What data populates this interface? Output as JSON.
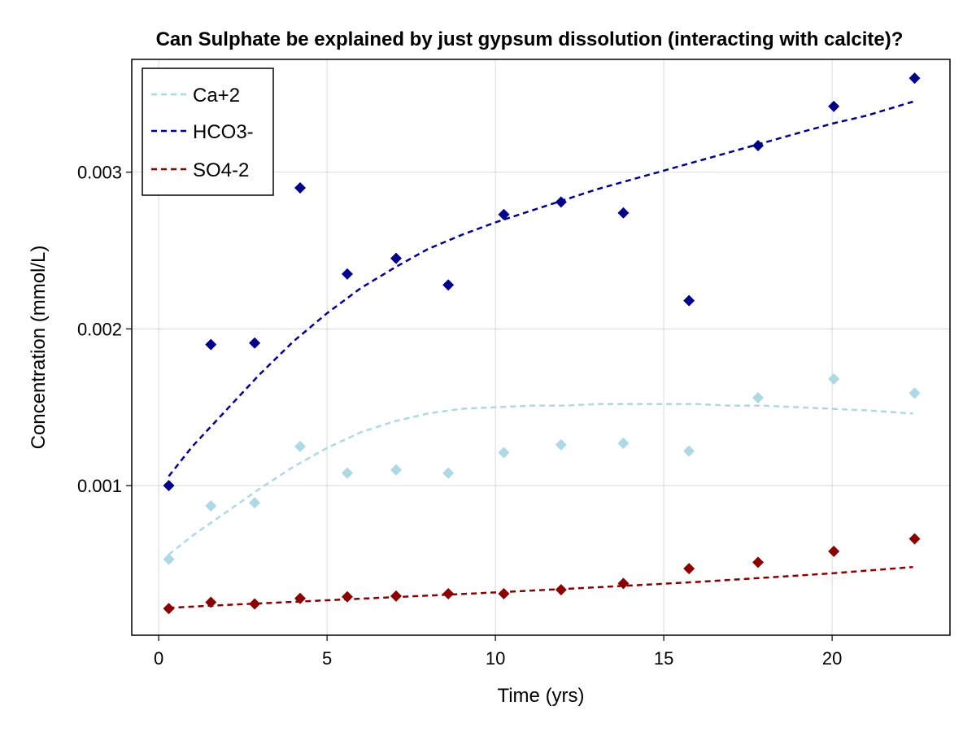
{
  "chart_data": {
    "type": "scatter",
    "title": "Can Sulphate be explained by just gypsum dissolution (interacting with calcite)?",
    "xlabel": "Time (yrs)",
    "ylabel": "Concentration (mmol/L)",
    "xlim": [
      -0.8,
      23.5
    ],
    "ylim": [
      4.5e-05,
      0.00372
    ],
    "xticks": [
      0,
      5,
      10,
      15,
      20
    ],
    "yticks": [
      0.001,
      0.002,
      0.003
    ],
    "xtick_labels": [
      "0",
      "5",
      "10",
      "15",
      "20"
    ],
    "ytick_labels": [
      "0.001",
      "0.002",
      "0.003"
    ],
    "grid": true,
    "legend_position": "top-left",
    "series": [
      {
        "name": "Ca+2",
        "color": "#add8e6",
        "line_x": [
          0.3,
          1.0,
          2.0,
          3.0,
          4.0,
          5.0,
          6.0,
          7.0,
          8.0,
          9.0,
          10.0,
          11.0,
          12.0,
          13.0,
          14.0,
          15.0,
          16.0,
          17.0,
          18.0,
          19.0,
          20.0,
          21.0,
          22.4
        ],
        "line_y": [
          0.00056,
          0.00068,
          0.00083,
          0.00098,
          0.00112,
          0.00124,
          0.00134,
          0.00141,
          0.00146,
          0.00149,
          0.0015,
          0.00151,
          0.00151,
          0.00152,
          0.00152,
          0.00152,
          0.00152,
          0.00151,
          0.00151,
          0.0015,
          0.00149,
          0.00148,
          0.00146
        ],
        "points_x": [
          0.3,
          1.55,
          2.85,
          4.2,
          5.6,
          7.05,
          8.6,
          10.25,
          11.95,
          13.8,
          15.75,
          17.8,
          20.05,
          22.45
        ],
        "points_y": [
          0.00053,
          0.00087,
          0.00089,
          0.00125,
          0.00108,
          0.0011,
          0.00108,
          0.00121,
          0.00126,
          0.00127,
          0.00122,
          0.00156,
          0.00168,
          0.00159
        ]
      },
      {
        "name": "HCO3-",
        "color": "#00008b",
        "line_x": [
          0.3,
          1.0,
          2.0,
          3.0,
          4.0,
          5.0,
          6.0,
          7.0,
          8.0,
          9.0,
          10.0,
          11.0,
          12.0,
          13.0,
          14.0,
          15.0,
          16.0,
          17.0,
          18.0,
          19.0,
          20.0,
          21.0,
          22.4
        ],
        "line_y": [
          0.00106,
          0.00125,
          0.00148,
          0.00171,
          0.00192,
          0.0021,
          0.00226,
          0.00239,
          0.00251,
          0.0026,
          0.00268,
          0.00275,
          0.00282,
          0.00289,
          0.00295,
          0.00301,
          0.00307,
          0.00313,
          0.00319,
          0.00325,
          0.00331,
          0.00336,
          0.00345
        ],
        "points_x": [
          0.3,
          1.55,
          2.85,
          4.2,
          5.6,
          7.05,
          8.6,
          10.25,
          11.95,
          13.8,
          15.75,
          17.8,
          20.05,
          22.45
        ],
        "points_y": [
          0.001,
          0.0019,
          0.00191,
          0.0029,
          0.00235,
          0.00245,
          0.00228,
          0.00273,
          0.00281,
          0.00274,
          0.00218,
          0.00317,
          0.00342,
          0.0036
        ]
      },
      {
        "name": "SO4-2",
        "color": "#8b0000",
        "line_x": [
          0.3,
          2.0,
          4.0,
          6.0,
          8.0,
          10.0,
          12.0,
          14.0,
          16.0,
          18.0,
          20.0,
          22.4
        ],
        "line_y": [
          0.00022,
          0.000238,
          0.000258,
          0.000278,
          0.000298,
          0.000318,
          0.00034,
          0.000362,
          0.000385,
          0.000412,
          0.00044,
          0.00048
        ],
        "points_x": [
          0.3,
          1.55,
          2.85,
          4.2,
          5.6,
          7.05,
          8.6,
          10.25,
          11.95,
          13.8,
          15.75,
          17.8,
          20.05,
          22.45
        ],
        "points_y": [
          0.000215,
          0.000255,
          0.000245,
          0.00028,
          0.00029,
          0.000295,
          0.00031,
          0.00031,
          0.000335,
          0.000375,
          0.00047,
          0.00051,
          0.00058,
          0.00066
        ]
      }
    ]
  }
}
